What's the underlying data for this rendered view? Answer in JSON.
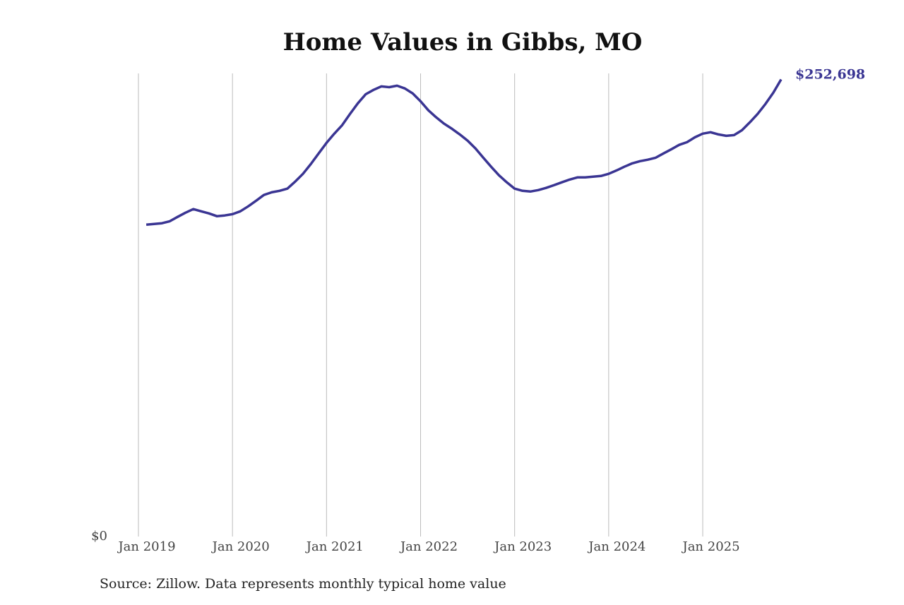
{
  "chart_data": {
    "type": "line",
    "title": "Home Values in Gibbs, MO",
    "source": "Source: Zillow. Data represents monthly typical home value",
    "x": [
      "2019-02",
      "2019-03",
      "2019-04",
      "2019-05",
      "2019-06",
      "2019-07",
      "2019-08",
      "2019-09",
      "2019-10",
      "2019-11",
      "2019-12",
      "2020-01",
      "2020-02",
      "2020-03",
      "2020-04",
      "2020-05",
      "2020-06",
      "2020-07",
      "2020-08",
      "2020-09",
      "2020-10",
      "2020-11",
      "2020-12",
      "2021-01",
      "2021-02",
      "2021-03",
      "2021-04",
      "2021-05",
      "2021-06",
      "2021-07",
      "2021-08",
      "2021-09",
      "2021-10",
      "2021-11",
      "2021-12",
      "2022-01",
      "2022-02",
      "2022-03",
      "2022-04",
      "2022-05",
      "2022-06",
      "2022-07",
      "2022-08",
      "2022-09",
      "2022-10",
      "2022-11",
      "2022-12",
      "2023-01",
      "2023-02",
      "2023-03",
      "2023-04",
      "2023-05",
      "2023-06",
      "2023-07",
      "2023-08",
      "2023-09",
      "2023-10",
      "2023-11",
      "2023-12",
      "2024-01",
      "2024-02",
      "2024-03",
      "2024-04",
      "2024-05",
      "2024-06",
      "2024-07",
      "2024-08",
      "2024-09",
      "2024-10",
      "2024-11",
      "2024-12",
      "2025-01",
      "2025-02",
      "2025-03",
      "2025-04",
      "2025-05",
      "2025-06",
      "2025-07",
      "2025-08",
      "2025-09",
      "2025-10",
      "2025-11"
    ],
    "series": [
      {
        "name": "Home value",
        "color": "#3a3593",
        "values": [
          172400,
          172800,
          173200,
          174300,
          176700,
          179000,
          181000,
          179800,
          178600,
          177100,
          177500,
          178200,
          179800,
          182500,
          185600,
          188800,
          190300,
          191100,
          192300,
          196200,
          200500,
          205900,
          211800,
          217600,
          222700,
          227400,
          233600,
          239500,
          244500,
          246900,
          248800,
          248400,
          249200,
          247700,
          244900,
          240600,
          235600,
          231700,
          228200,
          225400,
          222300,
          218800,
          214500,
          209400,
          204400,
          199700,
          195800,
          192300,
          191100,
          190700,
          191500,
          192700,
          194200,
          195800,
          197300,
          198500,
          198500,
          198900,
          199300,
          200500,
          202400,
          204400,
          206300,
          207500,
          208300,
          209400,
          211800,
          214100,
          216500,
          218000,
          220700,
          222700,
          223500,
          222300,
          221500,
          221900,
          224600,
          228900,
          233600,
          239100,
          245300,
          252698
        ],
        "value_labels": {
          "81": "$252,698"
        }
      }
    ],
    "xlim": [
      "2019-01",
      "2025-11"
    ],
    "xticks": [
      {
        "value": "2019-01",
        "label": "Jan 2019"
      },
      {
        "value": "2020-01",
        "label": "Jan 2020"
      },
      {
        "value": "2021-01",
        "label": "Jan 2021"
      },
      {
        "value": "2022-01",
        "label": "Jan 2022"
      },
      {
        "value": "2023-01",
        "label": "Jan 2023"
      },
      {
        "value": "2024-01",
        "label": "Jan 2024"
      },
      {
        "value": "2025-01",
        "label": "Jan 2025"
      }
    ],
    "ylim": [
      0,
      256000
    ],
    "yticks": [
      {
        "value": 0,
        "label": "$0"
      }
    ],
    "grid": true
  }
}
